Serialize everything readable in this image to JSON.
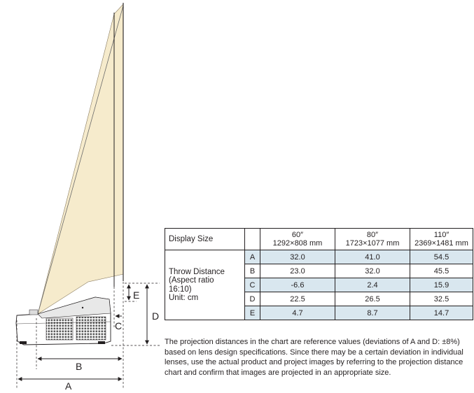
{
  "diagram": {
    "labels": {
      "a": "A",
      "b": "B",
      "c": "C",
      "d": "D",
      "e": "E"
    }
  },
  "table": {
    "header": {
      "display_size": "Display Size",
      "columns": [
        {
          "size": "60″",
          "dims": "1292×808 mm"
        },
        {
          "size": "80″",
          "dims": "1723×1077 mm"
        },
        {
          "size": "110″",
          "dims": "2369×1481 mm"
        }
      ]
    },
    "row_group_label": [
      "Throw Distance",
      "(Aspect ratio",
      "16:10)",
      "Unit: cm"
    ],
    "rows": [
      {
        "key": "A",
        "values": [
          "32.0",
          "41.0",
          "54.5"
        ]
      },
      {
        "key": "B",
        "values": [
          "23.0",
          "32.0",
          "45.5"
        ]
      },
      {
        "key": "C",
        "values": [
          "-6.6",
          "2.4",
          "15.9"
        ]
      },
      {
        "key": "D",
        "values": [
          "22.5",
          "26.5",
          "32.5"
        ]
      },
      {
        "key": "E",
        "values": [
          "4.7",
          "8.7",
          "14.7"
        ]
      }
    ]
  },
  "note": "The projection distances in the chart are reference values (deviations of A and D: ±8%) based on lens design specifications. Since there may be a certain deviation in individual lenses, use the actual product and project images by referring to the projection distance chart and confirm that images are projected in an appropriate size."
}
